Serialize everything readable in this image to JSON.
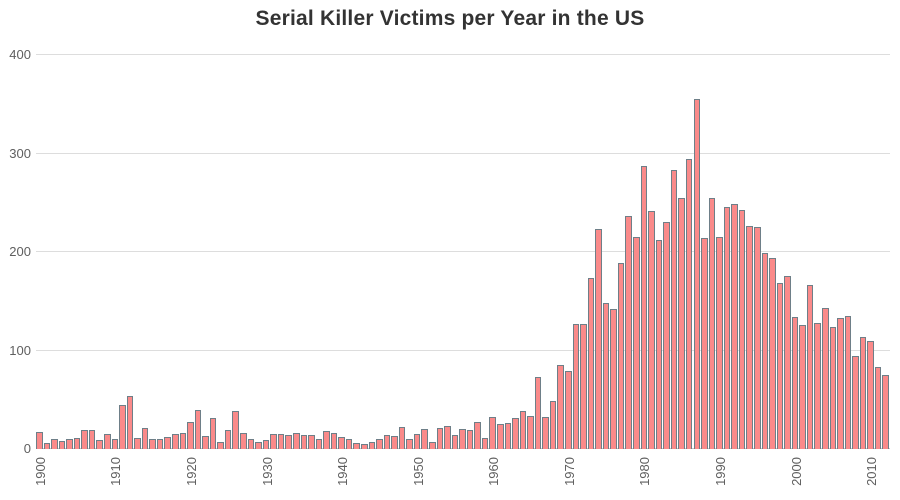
{
  "chart_data": {
    "type": "bar",
    "title": "Serial Killer Victims per Year in the US",
    "xlabel": "",
    "ylabel": "",
    "ylim": [
      0,
      400
    ],
    "yticks": [
      0,
      100,
      200,
      300,
      400
    ],
    "xticks": [
      1900,
      1910,
      1920,
      1930,
      1940,
      1950,
      1960,
      1970,
      1980,
      1990,
      2000,
      2010
    ],
    "grid": true,
    "legend": null,
    "x": [
      1900,
      1901,
      1902,
      1903,
      1904,
      1905,
      1906,
      1907,
      1908,
      1909,
      1910,
      1911,
      1912,
      1913,
      1914,
      1915,
      1916,
      1917,
      1918,
      1919,
      1920,
      1921,
      1922,
      1923,
      1924,
      1925,
      1926,
      1927,
      1928,
      1929,
      1930,
      1931,
      1932,
      1933,
      1934,
      1935,
      1936,
      1937,
      1938,
      1939,
      1940,
      1941,
      1942,
      1943,
      1944,
      1945,
      1946,
      1947,
      1948,
      1949,
      1950,
      1951,
      1952,
      1953,
      1954,
      1955,
      1956,
      1957,
      1958,
      1959,
      1960,
      1961,
      1962,
      1963,
      1964,
      1965,
      1966,
      1967,
      1968,
      1969,
      1970,
      1971,
      1972,
      1973,
      1974,
      1975,
      1976,
      1977,
      1978,
      1979,
      1980,
      1981,
      1982,
      1983,
      1984,
      1985,
      1986,
      1987,
      1988,
      1989,
      1990,
      1991,
      1992,
      1993,
      1994,
      1995,
      1996,
      1997,
      1998,
      1999,
      2000,
      2001,
      2002,
      2003,
      2004,
      2005,
      2006,
      2007,
      2008,
      2009,
      2010,
      2011,
      2012
    ],
    "values": [
      17,
      6,
      10,
      8,
      10,
      11,
      19,
      19,
      9,
      15,
      10,
      45,
      54,
      11,
      21,
      10,
      10,
      12,
      15,
      16,
      27,
      40,
      13,
      31,
      7,
      19,
      39,
      16,
      10,
      7,
      9,
      15,
      15,
      14,
      16,
      14,
      14,
      10,
      18,
      16,
      12,
      10,
      6,
      5,
      7,
      10,
      14,
      13,
      22,
      10,
      15,
      20,
      7,
      21,
      23,
      14,
      20,
      19,
      27,
      11,
      32,
      25,
      26,
      31,
      39,
      34,
      73,
      33,
      49,
      85,
      79,
      127,
      127,
      174,
      223,
      148,
      142,
      189,
      237,
      215,
      287,
      242,
      212,
      230,
      283,
      255,
      294,
      355,
      214,
      255,
      215,
      246,
      249,
      243,
      226,
      225,
      199,
      194,
      169,
      176,
      134,
      126,
      167,
      128,
      143,
      124,
      133,
      135,
      94,
      114,
      110,
      83,
      75
    ],
    "colors": {
      "bar_fill": "#fa8a8a",
      "bar_stroke": "#6e7f88",
      "gridline": "#dddddd",
      "axis_label": "#5f5f5f",
      "title": "#333333",
      "background": "#ffffff"
    }
  }
}
